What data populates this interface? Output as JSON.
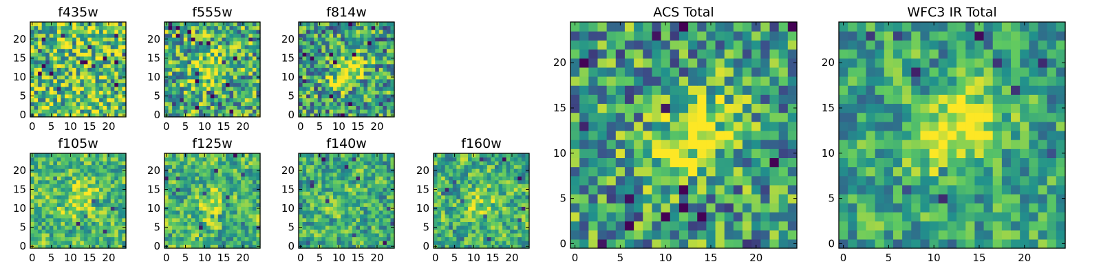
{
  "chart_data": [
    {
      "type": "heatmap",
      "title": "f435w",
      "xlim": [
        0,
        25
      ],
      "ylim": [
        0,
        25
      ],
      "xticks": [
        0,
        5,
        10,
        15,
        20
      ],
      "yticks": [
        0,
        5,
        10,
        15,
        20
      ],
      "colormap": "viridis",
      "pattern": "noise"
    },
    {
      "type": "heatmap",
      "title": "f555w",
      "xlim": [
        0,
        25
      ],
      "ylim": [
        0,
        25
      ],
      "xticks": [
        0,
        5,
        10,
        15,
        20
      ],
      "yticks": [
        0,
        5,
        10,
        15,
        20
      ],
      "colormap": "viridis",
      "pattern": "noise with central source"
    },
    {
      "type": "heatmap",
      "title": "f814w",
      "xlim": [
        0,
        25
      ],
      "ylim": [
        0,
        25
      ],
      "xticks": [
        0,
        5,
        10,
        15,
        20
      ],
      "yticks": [
        0,
        5,
        10,
        15,
        20
      ],
      "colormap": "viridis",
      "pattern": "noise with central source"
    },
    {
      "type": "heatmap",
      "title": "f105w",
      "xlim": [
        0,
        25
      ],
      "ylim": [
        0,
        25
      ],
      "xticks": [
        0,
        5,
        10,
        15,
        20
      ],
      "yticks": [
        0,
        5,
        10,
        15,
        20
      ],
      "colormap": "viridis",
      "pattern": "noise with central source"
    },
    {
      "type": "heatmap",
      "title": "f125w",
      "xlim": [
        0,
        25
      ],
      "ylim": [
        0,
        25
      ],
      "xticks": [
        0,
        5,
        10,
        15,
        20
      ],
      "yticks": [
        0,
        5,
        10,
        15,
        20
      ],
      "colormap": "viridis",
      "pattern": "noise with central source"
    },
    {
      "type": "heatmap",
      "title": "f140w",
      "xlim": [
        0,
        25
      ],
      "ylim": [
        0,
        25
      ],
      "xticks": [
        0,
        5,
        10,
        15,
        20
      ],
      "yticks": [
        0,
        5,
        10,
        15,
        20
      ],
      "colormap": "viridis",
      "pattern": "noise with central source"
    },
    {
      "type": "heatmap",
      "title": "f160w",
      "xlim": [
        0,
        25
      ],
      "ylim": [
        0,
        25
      ],
      "xticks": [
        0,
        5,
        10,
        15,
        20
      ],
      "yticks": [
        0,
        5,
        10,
        15,
        20
      ],
      "colormap": "viridis",
      "pattern": "noise with central source"
    },
    {
      "type": "heatmap",
      "title": "ACS Total",
      "xlim": [
        0,
        25
      ],
      "ylim": [
        0,
        25
      ],
      "xticks": [
        0,
        5,
        10,
        15,
        20
      ],
      "yticks": [
        0,
        5,
        10,
        15,
        20
      ],
      "colormap": "viridis",
      "pattern": "noise with central source"
    },
    {
      "type": "heatmap",
      "title": "WFC3 IR Total",
      "xlim": [
        0,
        25
      ],
      "ylim": [
        0,
        25
      ],
      "xticks": [
        0,
        5,
        10,
        15,
        20
      ],
      "yticks": [
        0,
        5,
        10,
        15,
        20
      ],
      "colormap": "viridis",
      "pattern": "noise with central source"
    }
  ],
  "colors": {
    "viridis_stops": [
      "#440154",
      "#3b528b",
      "#21918c",
      "#5ec962",
      "#fde725"
    ]
  }
}
